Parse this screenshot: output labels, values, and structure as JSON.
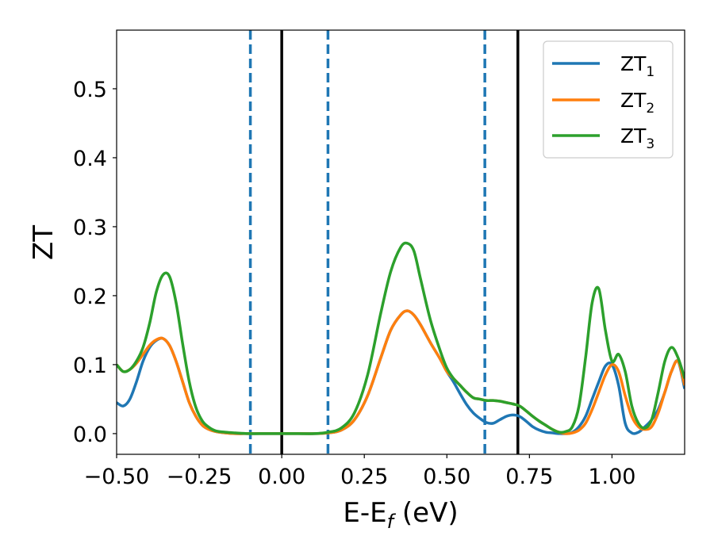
{
  "chart_data": {
    "type": "line",
    "title": "",
    "xlabel": {
      "main": "E-E",
      "sub": "f",
      "unit": " (eV)"
    },
    "ylabel": "ZT",
    "xlim": [
      -0.5,
      1.22
    ],
    "ylim": [
      -0.03,
      0.585
    ],
    "x_ticks": [
      -0.5,
      -0.25,
      0.0,
      0.25,
      0.5,
      0.75,
      1.0
    ],
    "x_tick_labels": [
      "−0.50",
      "−0.25",
      "0.00",
      "0.25",
      "0.50",
      "0.75",
      "1.00"
    ],
    "y_ticks": [
      0.0,
      0.1,
      0.2,
      0.3,
      0.4,
      0.5
    ],
    "y_tick_labels": [
      "0.0",
      "0.1",
      "0.2",
      "0.3",
      "0.4",
      "0.5"
    ],
    "grid": false,
    "legend_position": "top-right",
    "vertical_lines": [
      {
        "x": -0.095,
        "style": "dashed",
        "color": "#1f77b4"
      },
      {
        "x": 0.0,
        "style": "solid",
        "color": "#000000"
      },
      {
        "x": 0.14,
        "style": "dashed",
        "color": "#1f77b4"
      },
      {
        "x": 0.615,
        "style": "dashed",
        "color": "#1f77b4"
      },
      {
        "x": 0.715,
        "style": "solid",
        "color": "#000000"
      }
    ],
    "series": [
      {
        "name": "ZT",
        "sub": "1",
        "color": "#1f77b4",
        "x": [
          -0.5,
          -0.48,
          -0.46,
          -0.44,
          -0.42,
          -0.4,
          -0.38,
          -0.36,
          -0.34,
          -0.32,
          -0.3,
          -0.28,
          -0.26,
          -0.24,
          -0.22,
          -0.2,
          -0.17,
          -0.14,
          -0.1,
          -0.05,
          0.0,
          0.05,
          0.1,
          0.14,
          0.18,
          0.22,
          0.26,
          0.3,
          0.33,
          0.36,
          0.38,
          0.4,
          0.42,
          0.45,
          0.48,
          0.5,
          0.52,
          0.54,
          0.56,
          0.58,
          0.6,
          0.62,
          0.64,
          0.66,
          0.68,
          0.7,
          0.72,
          0.74,
          0.76,
          0.78,
          0.8,
          0.82,
          0.84,
          0.86,
          0.88,
          0.9,
          0.92,
          0.94,
          0.96,
          0.98,
          1.0,
          1.02,
          1.04,
          1.06,
          1.08,
          1.1,
          1.12,
          1.14,
          1.16,
          1.18,
          1.2,
          1.22
        ],
        "values": [
          0.045,
          0.04,
          0.05,
          0.075,
          0.105,
          0.125,
          0.135,
          0.138,
          0.128,
          0.105,
          0.075,
          0.045,
          0.025,
          0.012,
          0.006,
          0.003,
          0.001,
          0.0,
          0.0,
          0.0,
          0.0,
          0.0,
          0.0,
          0.001,
          0.005,
          0.02,
          0.055,
          0.11,
          0.15,
          0.172,
          0.178,
          0.172,
          0.158,
          0.132,
          0.108,
          0.09,
          0.075,
          0.058,
          0.042,
          0.03,
          0.022,
          0.016,
          0.015,
          0.02,
          0.025,
          0.027,
          0.025,
          0.018,
          0.01,
          0.005,
          0.002,
          0.001,
          0.0,
          0.0,
          0.002,
          0.01,
          0.025,
          0.05,
          0.075,
          0.098,
          0.1,
          0.07,
          0.015,
          0.001,
          0.002,
          0.01,
          0.02,
          0.035,
          0.06,
          0.09,
          0.105,
          0.065
        ]
      },
      {
        "name": "ZT",
        "sub": "2",
        "color": "#ff7f0e",
        "x": [
          -0.5,
          -0.48,
          -0.46,
          -0.44,
          -0.42,
          -0.4,
          -0.38,
          -0.36,
          -0.34,
          -0.32,
          -0.3,
          -0.28,
          -0.26,
          -0.24,
          -0.22,
          -0.2,
          -0.17,
          -0.14,
          -0.1,
          -0.05,
          0.0,
          0.05,
          0.1,
          0.14,
          0.18,
          0.22,
          0.26,
          0.3,
          0.33,
          0.36,
          0.38,
          0.4,
          0.42,
          0.45,
          0.48,
          0.5,
          0.52,
          0.54,
          0.56,
          0.58,
          0.6,
          0.62,
          0.64,
          0.66,
          0.68,
          0.7,
          0.72,
          0.74,
          0.76,
          0.78,
          0.8,
          0.82,
          0.84,
          0.86,
          0.88,
          0.9,
          0.92,
          0.94,
          0.96,
          0.98,
          1.0,
          1.02,
          1.04,
          1.06,
          1.08,
          1.1,
          1.12,
          1.14,
          1.16,
          1.18,
          1.2,
          1.22
        ],
        "values": [
          0.1,
          0.09,
          0.093,
          0.102,
          0.115,
          0.128,
          0.136,
          0.138,
          0.128,
          0.105,
          0.075,
          0.045,
          0.025,
          0.012,
          0.006,
          0.003,
          0.001,
          0.0,
          0.0,
          0.0,
          0.0,
          0.0,
          0.0,
          0.001,
          0.005,
          0.02,
          0.055,
          0.11,
          0.15,
          0.172,
          0.178,
          0.172,
          0.158,
          0.132,
          0.108,
          0.09,
          0.08,
          0.07,
          0.06,
          0.052,
          0.05,
          0.048,
          0.048,
          0.047,
          0.045,
          0.043,
          0.04,
          0.033,
          0.025,
          0.018,
          0.012,
          0.006,
          0.002,
          0.0,
          0.001,
          0.005,
          0.015,
          0.035,
          0.06,
          0.085,
          0.1,
          0.09,
          0.055,
          0.025,
          0.01,
          0.006,
          0.01,
          0.03,
          0.06,
          0.09,
          0.105,
          0.07
        ]
      },
      {
        "name": "ZT",
        "sub": "3",
        "color": "#2ca02c",
        "x": [
          -0.5,
          -0.48,
          -0.46,
          -0.44,
          -0.42,
          -0.4,
          -0.38,
          -0.36,
          -0.34,
          -0.32,
          -0.3,
          -0.28,
          -0.26,
          -0.24,
          -0.22,
          -0.2,
          -0.17,
          -0.14,
          -0.1,
          -0.05,
          0.0,
          0.05,
          0.1,
          0.14,
          0.18,
          0.22,
          0.26,
          0.3,
          0.33,
          0.36,
          0.38,
          0.4,
          0.42,
          0.45,
          0.48,
          0.5,
          0.52,
          0.54,
          0.56,
          0.58,
          0.6,
          0.62,
          0.64,
          0.66,
          0.68,
          0.7,
          0.72,
          0.74,
          0.76,
          0.78,
          0.8,
          0.82,
          0.84,
          0.86,
          0.88,
          0.9,
          0.92,
          0.94,
          0.96,
          0.98,
          1.0,
          1.02,
          1.04,
          1.06,
          1.08,
          1.1,
          1.12,
          1.14,
          1.16,
          1.18,
          1.2,
          1.22
        ],
        "values": [
          0.1,
          0.09,
          0.093,
          0.105,
          0.125,
          0.16,
          0.205,
          0.23,
          0.228,
          0.19,
          0.13,
          0.075,
          0.038,
          0.018,
          0.009,
          0.004,
          0.002,
          0.001,
          0.0,
          0.0,
          0.0,
          0.0,
          0.0,
          0.002,
          0.008,
          0.03,
          0.085,
          0.175,
          0.235,
          0.27,
          0.276,
          0.265,
          0.225,
          0.165,
          0.12,
          0.095,
          0.08,
          0.07,
          0.06,
          0.052,
          0.05,
          0.048,
          0.048,
          0.047,
          0.045,
          0.043,
          0.04,
          0.033,
          0.025,
          0.018,
          0.012,
          0.006,
          0.002,
          0.003,
          0.01,
          0.04,
          0.11,
          0.19,
          0.21,
          0.15,
          0.105,
          0.115,
          0.09,
          0.04,
          0.015,
          0.008,
          0.02,
          0.06,
          0.105,
          0.125,
          0.11,
          0.08
        ]
      }
    ]
  }
}
